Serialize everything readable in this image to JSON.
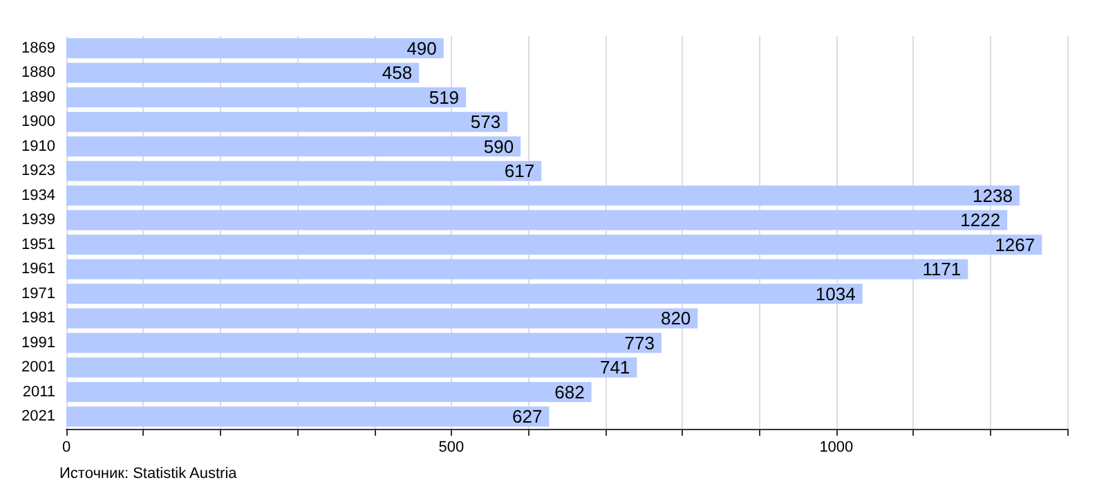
{
  "chart_data": {
    "type": "bar",
    "orientation": "horizontal",
    "categories": [
      "1869",
      "1880",
      "1890",
      "1900",
      "1910",
      "1923",
      "1934",
      "1939",
      "1951",
      "1961",
      "1971",
      "1981",
      "1991",
      "2001",
      "2011",
      "2021"
    ],
    "values": [
      490,
      458,
      519,
      573,
      590,
      617,
      1238,
      1222,
      1267,
      1171,
      1034,
      820,
      773,
      741,
      682,
      627
    ],
    "color": "#b3c9ff",
    "xlim": [
      0,
      1300
    ],
    "xticks": [
      0,
      {
        "value": 100,
        "label": null
      },
      {
        "value": 200,
        "label": null
      },
      {
        "value": 300,
        "label": null
      },
      {
        "value": 400,
        "label": null
      },
      500,
      {
        "value": 600,
        "label": null
      },
      {
        "value": 700,
        "label": null
      },
      {
        "value": 800,
        "label": null
      },
      {
        "value": 900,
        "label": null
      },
      1000,
      {
        "value": 1100,
        "label": null
      },
      {
        "value": 1200,
        "label": null
      },
      {
        "value": 1300,
        "label": null
      }
    ],
    "grid": "x",
    "data_labels": true,
    "annotations": [
      "Источник: Statistik Austria"
    ]
  }
}
